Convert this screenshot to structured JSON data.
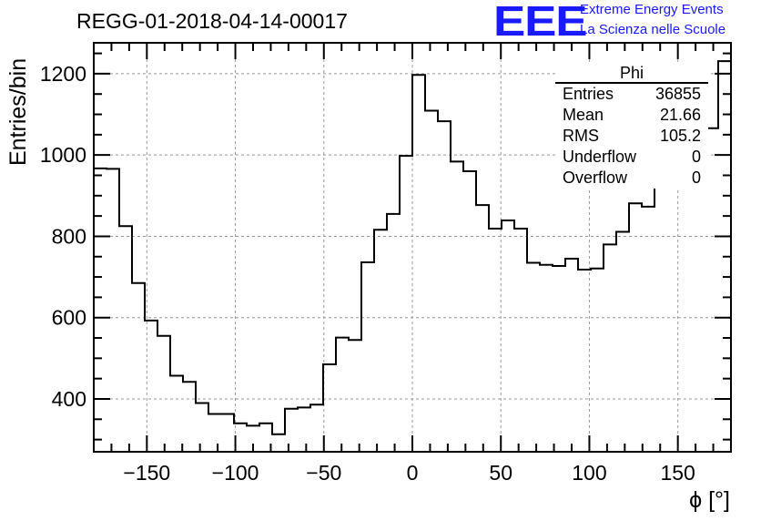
{
  "header": {
    "title": "REGG-01-2018-04-14-00017"
  },
  "logo": {
    "mark": "EEE",
    "line1": "Extreme Energy Events",
    "line2": "La Scienza nelle Scuole",
    "color": "#1a1aff"
  },
  "stats": {
    "name": "Phi",
    "rows": [
      {
        "label": "Entries",
        "value": "36855"
      },
      {
        "label": "Mean",
        "value": "21.66"
      },
      {
        "label": "RMS",
        "value": "105.2"
      },
      {
        "label": "Underflow",
        "value": "0"
      },
      {
        "label": "Overflow",
        "value": "0"
      }
    ]
  },
  "chart_data": {
    "type": "histogram",
    "title": "REGG-01-2018-04-14-00017",
    "xlabel": "ϕ [°]",
    "ylabel": "Entries/bin",
    "xlim": [
      -180,
      180
    ],
    "ylim": [
      270,
      1276
    ],
    "bin_width": 7.2,
    "grid": true,
    "xticks": [
      -150,
      -100,
      -50,
      0,
      50,
      100,
      150
    ],
    "xtick_labels": [
      "−150",
      "−100",
      "−50",
      "0",
      "50",
      "100",
      "150"
    ],
    "yticks": [
      400,
      600,
      800,
      1000,
      1200
    ],
    "ytick_labels": [
      "400",
      "600",
      "800",
      "1000",
      "1200"
    ],
    "values": [
      967,
      966,
      825,
      685,
      593,
      555,
      457,
      442,
      390,
      363,
      363,
      340,
      334,
      340,
      313,
      376,
      379,
      386,
      485,
      551,
      545,
      736,
      816,
      855,
      998,
      1197,
      1109,
      1083,
      984,
      960,
      877,
      819,
      839,
      819,
      735,
      730,
      727,
      745,
      718,
      721,
      780,
      811,
      881,
      873,
      1005,
      1010,
      1062,
      1066,
      1066,
      1231
    ],
    "line_color": "#000000",
    "legend": "top-right"
  }
}
